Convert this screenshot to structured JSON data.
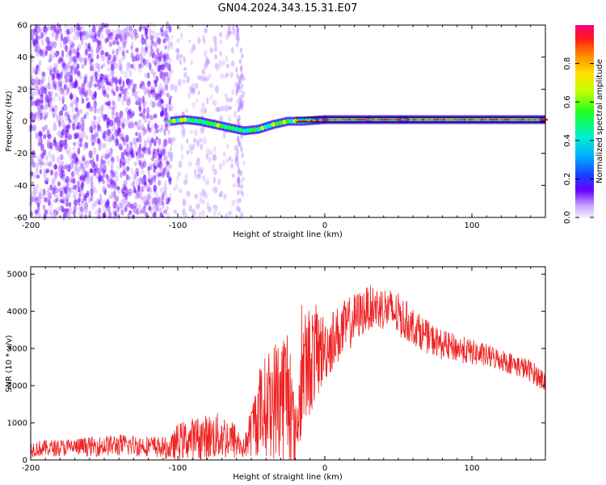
{
  "title": "GN04.2024.343.15.31.E07",
  "colors": {
    "line": "#ee2222",
    "axis": "#000000",
    "background": "#ffffff"
  },
  "chart_data": [
    {
      "type": "heatmap",
      "xlabel": "Height of straight line (km)",
      "ylabel": "Frequency (Hz)",
      "xlim": [
        -200,
        150
      ],
      "ylim": [
        -60,
        60
      ],
      "xticks": [
        -200,
        -100,
        0,
        100
      ],
      "yticks": [
        -60,
        -40,
        -20,
        0,
        20,
        40,
        60
      ],
      "colorbar": {
        "label": "Normalized spectral amplitude",
        "range": [
          0,
          1
        ],
        "ticks": [
          "0.0",
          "0.2",
          "0.4",
          "0.6",
          "0.8"
        ],
        "tick_values": [
          0,
          0.2,
          0.4,
          0.6,
          0.8
        ],
        "colormap": "rainbow (violet to magenta)"
      },
      "tone_track": [
        {
          "x": -105,
          "y": 0
        },
        {
          "x": -95,
          "y": 1
        },
        {
          "x": -85,
          "y": 0
        },
        {
          "x": -75,
          "y": -2
        },
        {
          "x": -65,
          "y": -4
        },
        {
          "x": -55,
          "y": -6
        },
        {
          "x": -45,
          "y": -5
        },
        {
          "x": -35,
          "y": -2
        },
        {
          "x": -25,
          "y": 0
        },
        {
          "x": -15,
          "y": 0
        },
        {
          "x": 0,
          "y": 1
        },
        {
          "x": 50,
          "y": 1
        },
        {
          "x": 150,
          "y": 1
        }
      ],
      "noise_regions": [
        {
          "x_from": -200,
          "x_to": -105,
          "density": "high"
        },
        {
          "x_from": -105,
          "x_to": -55,
          "density": "low"
        }
      ],
      "reference_line_y": 1
    },
    {
      "type": "line",
      "xlabel": "Height of straight line (km)",
      "ylabel": "SNR (10 * v/v)",
      "xlim": [
        -200,
        150
      ],
      "ylim": [
        0,
        5200
      ],
      "xticks": [
        -200,
        -100,
        0,
        100
      ],
      "yticks": [
        0,
        1000,
        2000,
        3000,
        4000,
        5000
      ],
      "series": [
        {
          "color": "#ee2222",
          "envelope": {
            "x": [
              -200,
              -180,
              -160,
              -140,
              -120,
              -105,
              -100,
              -85,
              -70,
              -60,
              -55,
              -45,
              -35,
              -25,
              -20,
              -15,
              -10,
              -5,
              0,
              10,
              20,
              30,
              40,
              50,
              60,
              70,
              80,
              100,
              120,
              140,
              150
            ],
            "mean": [
              300,
              330,
              360,
              400,
              380,
              300,
              500,
              600,
              650,
              500,
              300,
              1300,
              1600,
              1900,
              600,
              2300,
              2700,
              2900,
              3000,
              3400,
              3800,
              4100,
              4100,
              3900,
              3600,
              3300,
              3100,
              2900,
              2700,
              2400,
              2100
            ],
            "amp": [
              220,
              230,
              260,
              300,
              280,
              300,
              500,
              600,
              650,
              500,
              250,
              1200,
              1600,
              2000,
              800,
              1600,
              1500,
              1300,
              900,
              800,
              700,
              600,
              600,
              600,
              500,
              450,
              400,
              350,
              300,
              300,
              300
            ]
          }
        }
      ]
    }
  ]
}
